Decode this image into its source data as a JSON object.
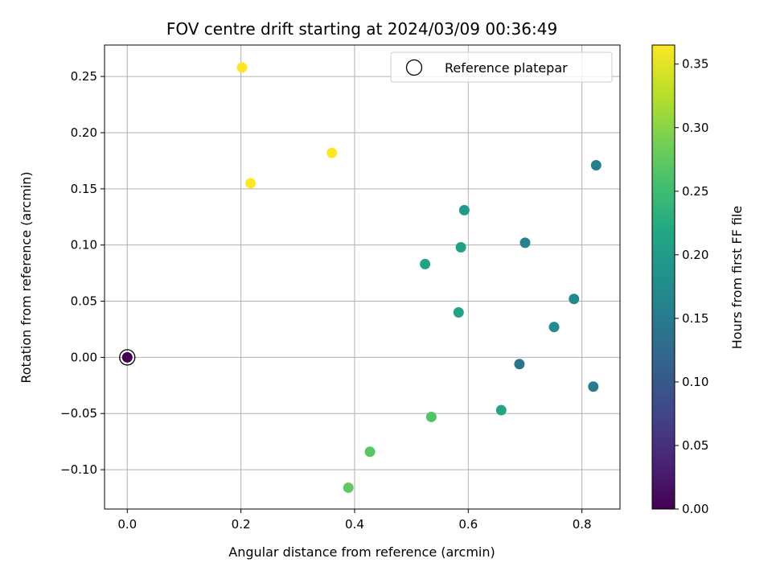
{
  "chart_data": {
    "type": "scatter",
    "title": "FOV centre drift starting at 2024/03/09 00:36:49",
    "xlabel": "Angular distance from reference (arcmin)",
    "ylabel": "Rotation from reference (arcmin)",
    "xlim": [
      -0.04,
      0.867
    ],
    "ylim": [
      -0.135,
      0.278
    ],
    "xticks": [
      0.0,
      0.2,
      0.4,
      0.6,
      0.8
    ],
    "xtick_labels": [
      "0.0",
      "0.2",
      "0.4",
      "0.6",
      "0.8"
    ],
    "yticks": [
      -0.1,
      -0.05,
      0.0,
      0.05,
      0.1,
      0.15,
      0.2,
      0.25
    ],
    "ytick_labels": [
      "−0.10",
      "−0.05",
      "0.00",
      "0.05",
      "0.10",
      "0.15",
      "0.20",
      "0.25"
    ],
    "grid": true,
    "legend": {
      "position": "top-right",
      "entries": [
        {
          "label": "Reference platepar",
          "marker": "open-circle"
        }
      ]
    },
    "colorbar": {
      "label": "Hours from first FF file",
      "colormap": "viridis",
      "range": [
        0.0,
        0.365
      ],
      "ticks": [
        0.0,
        0.05,
        0.1,
        0.15,
        0.2,
        0.25,
        0.3,
        0.35
      ],
      "tick_labels": [
        "0.00",
        "0.05",
        "0.10",
        "0.15",
        "0.20",
        "0.25",
        "0.30",
        "0.35"
      ]
    },
    "series": [
      {
        "points": [
          {
            "x": 0.0,
            "y": 0.0,
            "hours": 0.0
          },
          {
            "x": 0.825,
            "y": 0.171,
            "hours": 0.155
          },
          {
            "x": 0.7,
            "y": 0.102,
            "hours": 0.16
          },
          {
            "x": 0.786,
            "y": 0.052,
            "hours": 0.17
          },
          {
            "x": 0.751,
            "y": 0.027,
            "hours": 0.175
          },
          {
            "x": 0.69,
            "y": -0.006,
            "hours": 0.14
          },
          {
            "x": 0.82,
            "y": -0.026,
            "hours": 0.15
          },
          {
            "x": 0.593,
            "y": 0.131,
            "hours": 0.2
          },
          {
            "x": 0.587,
            "y": 0.098,
            "hours": 0.205
          },
          {
            "x": 0.524,
            "y": 0.083,
            "hours": 0.21
          },
          {
            "x": 0.583,
            "y": 0.04,
            "hours": 0.21
          },
          {
            "x": 0.658,
            "y": -0.047,
            "hours": 0.215
          },
          {
            "x": 0.535,
            "y": -0.053,
            "hours": 0.265
          },
          {
            "x": 0.427,
            "y": -0.084,
            "hours": 0.27
          },
          {
            "x": 0.389,
            "y": -0.116,
            "hours": 0.275
          },
          {
            "x": 0.202,
            "y": 0.258,
            "hours": 0.365
          },
          {
            "x": 0.36,
            "y": 0.182,
            "hours": 0.365
          },
          {
            "x": 0.217,
            "y": 0.155,
            "hours": 0.365
          }
        ]
      }
    ],
    "reference_marker": {
      "x": 0.0,
      "y": 0.0
    }
  }
}
